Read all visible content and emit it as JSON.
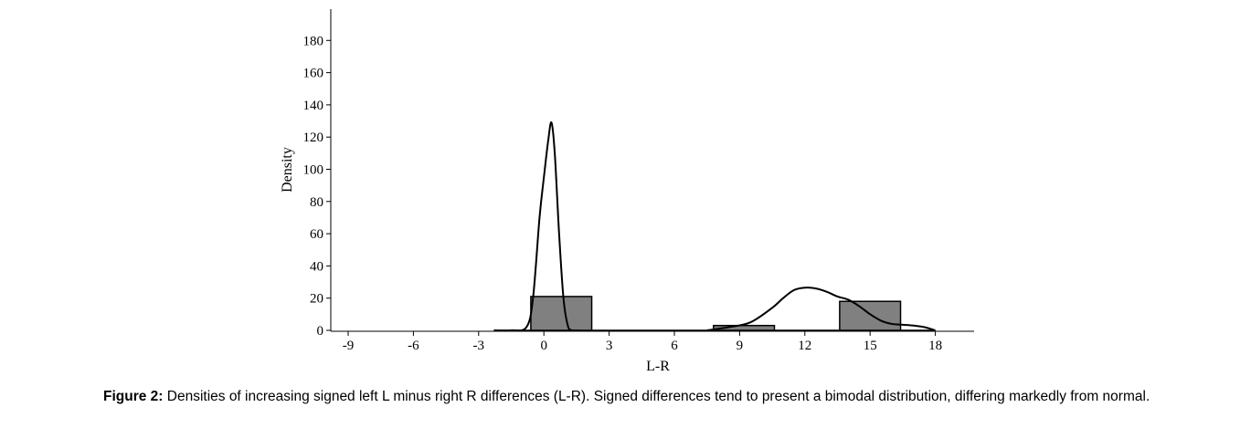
{
  "chart_data": {
    "type": "histogram",
    "xlabel": "L-R",
    "ylabel": "Density",
    "xlim": [
      -10,
      20
    ],
    "ylim": [
      0,
      200
    ],
    "x_ticks": [
      -9,
      -6,
      -3,
      0,
      3,
      6,
      9,
      12,
      15,
      18
    ],
    "y_ticks": [
      0,
      20,
      40,
      60,
      80,
      100,
      120,
      140,
      160,
      180
    ],
    "bars": [
      {
        "x0": -0.6,
        "x1": 2.2,
        "value": 21
      },
      {
        "x0": 7.8,
        "x1": 10.6,
        "value": 3
      },
      {
        "x0": 13.6,
        "x1": 16.4,
        "value": 18
      }
    ],
    "density_curves": [
      {
        "x": [
          -2.3,
          -1.5,
          -0.8,
          -0.5,
          -0.2,
          0.0,
          0.2,
          0.35,
          0.5,
          0.7,
          0.9,
          1.1,
          1.3,
          1.6
        ],
        "y": [
          0,
          0,
          2,
          20,
          70,
          95,
          118,
          129,
          110,
          60,
          20,
          3,
          0,
          0
        ]
      },
      {
        "x": [
          7.5,
          8.5,
          9.5,
          10.5,
          11.0,
          11.5,
          12.0,
          12.5,
          13.0,
          13.5,
          14.0,
          14.5,
          15.0,
          15.5,
          16.0,
          16.5,
          17.0,
          17.5,
          18.0
        ],
        "y": [
          0,
          2,
          5,
          14,
          20,
          25,
          26.5,
          26,
          24,
          21,
          19,
          15,
          10,
          6,
          4,
          3.5,
          3,
          2,
          0
        ]
      }
    ]
  },
  "caption": {
    "label": "Figure 2:",
    "text": " Densities of increasing signed left L minus right R differences (L-R). Signed differences tend to present a bimodal distribution, differing markedly from normal."
  }
}
